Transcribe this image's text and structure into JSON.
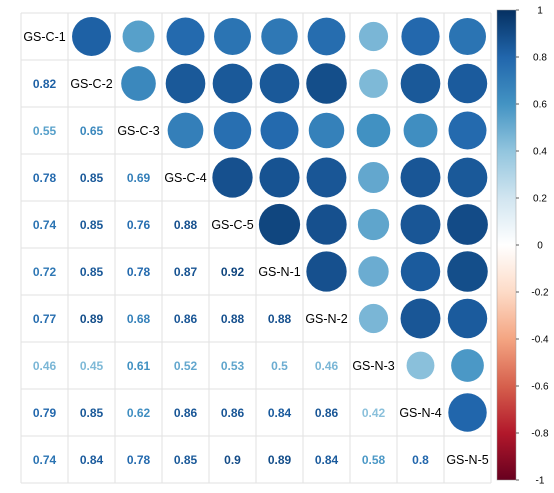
{
  "chart_data": {
    "type": "heatmap",
    "style": "correlation-matrix",
    "upper": "circle",
    "lower": "number",
    "labels": [
      "GS-C-1",
      "GS-C-2",
      "GS-C-3",
      "GS-C-4",
      "GS-C-5",
      "GS-N-1",
      "GS-N-2",
      "GS-N-3",
      "GS-N-4",
      "GS-N-5"
    ],
    "matrix": [
      [
        1,
        0.82,
        0.55,
        0.78,
        0.74,
        0.72,
        0.77,
        0.46,
        0.79,
        0.74
      ],
      [
        0.82,
        1,
        0.65,
        0.85,
        0.85,
        0.85,
        0.89,
        0.45,
        0.85,
        0.84
      ],
      [
        0.55,
        0.65,
        1,
        0.69,
        0.76,
        0.78,
        0.68,
        0.61,
        0.62,
        0.78
      ],
      [
        0.78,
        0.85,
        0.69,
        1,
        0.88,
        0.87,
        0.86,
        0.52,
        0.86,
        0.85
      ],
      [
        0.74,
        0.85,
        0.76,
        0.88,
        1,
        0.92,
        0.88,
        0.53,
        0.86,
        0.9
      ],
      [
        0.72,
        0.85,
        0.78,
        0.87,
        0.92,
        1,
        0.88,
        0.5,
        0.84,
        0.89
      ],
      [
        0.77,
        0.89,
        0.68,
        0.86,
        0.88,
        0.88,
        1,
        0.46,
        0.86,
        0.84
      ],
      [
        0.46,
        0.45,
        0.61,
        0.52,
        0.53,
        0.5,
        0.46,
        1,
        0.42,
        0.58
      ],
      [
        0.79,
        0.85,
        0.62,
        0.86,
        0.86,
        0.84,
        0.86,
        0.42,
        1,
        0.8
      ],
      [
        0.74,
        0.84,
        0.78,
        0.85,
        0.9,
        0.89,
        0.84,
        0.58,
        0.8,
        1
      ]
    ],
    "color_scale": {
      "range": [
        -1,
        1
      ],
      "ticks": [
        "1",
        "0.8",
        "0.6",
        "0.4",
        "0.2",
        "0",
        "-0.2",
        "-0.4",
        "-0.6",
        "-0.8",
        "-1"
      ],
      "stops": [
        "#67001F",
        "#B2182B",
        "#D6604D",
        "#F4A582",
        "#FDDBC7",
        "#FFFFFF",
        "#D1E5F0",
        "#92C5DE",
        "#4393C3",
        "#2166AC",
        "#053061"
      ]
    },
    "legend": "right",
    "grid": true
  }
}
